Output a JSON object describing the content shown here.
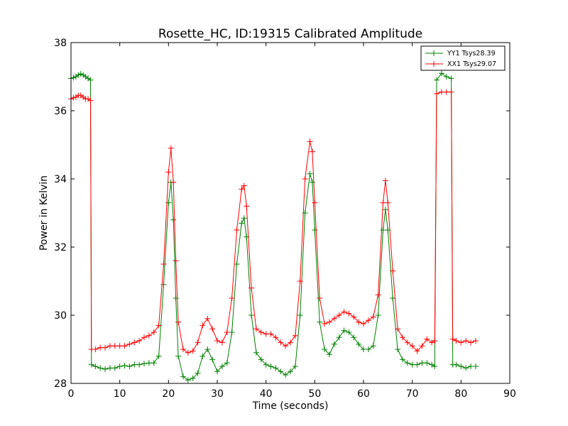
{
  "chart_data": {
    "type": "line",
    "title": "Rosette_HC, ID:19315 Calibrated Amplitude",
    "xlabel": "Time (seconds)",
    "ylabel": "Power in Kelvin",
    "xlim": [
      0,
      90
    ],
    "ylim": [
      28,
      38
    ],
    "xticks": [
      0,
      10,
      20,
      30,
      40,
      50,
      60,
      70,
      80,
      90
    ],
    "yticks": [
      28,
      30,
      32,
      34,
      36,
      38
    ],
    "grid": false,
    "legend_position": "top-right",
    "marker": "plus",
    "series": [
      {
        "name": "YY1 Tsys28.39",
        "color": "#008000",
        "points": [
          [
            0,
            36.95
          ],
          [
            0.5,
            36.97
          ],
          [
            1,
            37.0
          ],
          [
            1.5,
            37.05
          ],
          [
            2,
            37.08
          ],
          [
            2.5,
            37.05
          ],
          [
            3,
            37.0
          ],
          [
            3.5,
            36.95
          ],
          [
            4,
            36.9
          ],
          [
            4.2,
            28.55
          ],
          [
            5,
            28.5
          ],
          [
            6,
            28.45
          ],
          [
            7,
            28.42
          ],
          [
            8,
            28.45
          ],
          [
            9,
            28.45
          ],
          [
            10,
            28.5
          ],
          [
            11,
            28.52
          ],
          [
            12,
            28.5
          ],
          [
            13,
            28.55
          ],
          [
            14,
            28.55
          ],
          [
            15,
            28.58
          ],
          [
            16,
            28.6
          ],
          [
            17,
            28.6
          ],
          [
            18,
            28.8
          ],
          [
            19,
            30.9
          ],
          [
            20,
            33.3
          ],
          [
            20.5,
            33.9
          ],
          [
            21,
            32.8
          ],
          [
            21.5,
            30.5
          ],
          [
            22,
            28.8
          ],
          [
            23,
            28.2
          ],
          [
            24,
            28.1
          ],
          [
            25,
            28.15
          ],
          [
            26,
            28.3
          ],
          [
            27,
            28.8
          ],
          [
            28,
            29.0
          ],
          [
            29,
            28.7
          ],
          [
            30,
            28.35
          ],
          [
            31,
            28.5
          ],
          [
            32,
            28.6
          ],
          [
            33,
            29.5
          ],
          [
            34,
            31.5
          ],
          [
            35,
            32.7
          ],
          [
            35.5,
            32.85
          ],
          [
            36,
            32.3
          ],
          [
            37,
            30.0
          ],
          [
            38,
            28.9
          ],
          [
            39,
            28.7
          ],
          [
            40,
            28.55
          ],
          [
            41,
            28.5
          ],
          [
            42,
            28.45
          ],
          [
            43,
            28.35
          ],
          [
            44,
            28.25
          ],
          [
            45,
            28.35
          ],
          [
            46,
            28.5
          ],
          [
            47,
            30.0
          ],
          [
            48,
            33.0
          ],
          [
            49,
            34.15
          ],
          [
            49.5,
            33.9
          ],
          [
            50,
            32.5
          ],
          [
            51,
            29.8
          ],
          [
            52,
            29.0
          ],
          [
            53,
            28.85
          ],
          [
            54,
            29.15
          ],
          [
            55,
            29.35
          ],
          [
            56,
            29.55
          ],
          [
            57,
            29.5
          ],
          [
            58,
            29.35
          ],
          [
            59,
            29.15
          ],
          [
            60,
            29.0
          ],
          [
            61,
            29.0
          ],
          [
            62,
            29.1
          ],
          [
            63,
            30.0
          ],
          [
            64,
            32.5
          ],
          [
            64.5,
            33.1
          ],
          [
            65,
            32.5
          ],
          [
            66,
            30.5
          ],
          [
            67,
            29.0
          ],
          [
            68,
            28.7
          ],
          [
            69,
            28.6
          ],
          [
            70,
            28.55
          ],
          [
            71,
            28.55
          ],
          [
            72,
            28.6
          ],
          [
            73,
            28.6
          ],
          [
            74,
            28.55
          ],
          [
            74.6,
            28.5
          ],
          [
            75,
            36.9
          ],
          [
            76,
            37.1
          ],
          [
            77,
            37.0
          ],
          [
            78,
            36.95
          ],
          [
            78.3,
            28.55
          ],
          [
            79,
            28.55
          ],
          [
            80,
            28.5
          ],
          [
            81,
            28.45
          ],
          [
            82,
            28.5
          ],
          [
            83,
            28.5
          ]
        ]
      },
      {
        "name": "XX1 Tsys29.07",
        "color": "#ff0000",
        "points": [
          [
            0,
            36.35
          ],
          [
            0.5,
            36.38
          ],
          [
            1,
            36.4
          ],
          [
            1.5,
            36.45
          ],
          [
            2,
            36.45
          ],
          [
            2.5,
            36.4
          ],
          [
            3,
            36.35
          ],
          [
            3.5,
            36.35
          ],
          [
            4,
            36.3
          ],
          [
            4.2,
            29.0
          ],
          [
            5,
            29.0
          ],
          [
            6,
            29.05
          ],
          [
            7,
            29.05
          ],
          [
            8,
            29.1
          ],
          [
            9,
            29.1
          ],
          [
            10,
            29.1
          ],
          [
            11,
            29.1
          ],
          [
            12,
            29.15
          ],
          [
            13,
            29.2
          ],
          [
            14,
            29.25
          ],
          [
            15,
            29.35
          ],
          [
            16,
            29.4
          ],
          [
            17,
            29.5
          ],
          [
            18,
            29.7
          ],
          [
            19,
            31.5
          ],
          [
            20,
            34.2
          ],
          [
            20.5,
            34.9
          ],
          [
            21,
            33.9
          ],
          [
            21.5,
            31.6
          ],
          [
            22,
            29.8
          ],
          [
            23,
            29.0
          ],
          [
            24,
            28.9
          ],
          [
            25,
            28.95
          ],
          [
            26,
            29.2
          ],
          [
            27,
            29.7
          ],
          [
            28,
            29.9
          ],
          [
            29,
            29.6
          ],
          [
            30,
            29.25
          ],
          [
            31,
            29.2
          ],
          [
            32,
            29.5
          ],
          [
            33,
            30.5
          ],
          [
            34,
            32.5
          ],
          [
            35,
            33.7
          ],
          [
            35.5,
            33.8
          ],
          [
            36,
            33.2
          ],
          [
            37,
            30.8
          ],
          [
            38,
            29.6
          ],
          [
            39,
            29.5
          ],
          [
            40,
            29.45
          ],
          [
            41,
            29.45
          ],
          [
            42,
            29.35
          ],
          [
            43,
            29.2
          ],
          [
            44,
            29.1
          ],
          [
            45,
            29.2
          ],
          [
            46,
            29.4
          ],
          [
            47,
            31.0
          ],
          [
            48,
            34.0
          ],
          [
            49,
            35.1
          ],
          [
            49.5,
            34.8
          ],
          [
            50,
            33.3
          ],
          [
            51,
            30.5
          ],
          [
            52,
            29.75
          ],
          [
            53,
            29.8
          ],
          [
            54,
            29.9
          ],
          [
            55,
            30.0
          ],
          [
            56,
            30.1
          ],
          [
            57,
            30.05
          ],
          [
            58,
            29.95
          ],
          [
            59,
            29.8
          ],
          [
            60,
            29.75
          ],
          [
            61,
            29.85
          ],
          [
            62,
            29.95
          ],
          [
            63,
            30.6
          ],
          [
            64,
            33.3
          ],
          [
            64.5,
            33.95
          ],
          [
            65,
            33.3
          ],
          [
            66,
            31.3
          ],
          [
            67,
            29.6
          ],
          [
            68,
            29.35
          ],
          [
            69,
            29.2
          ],
          [
            70,
            29.1
          ],
          [
            71,
            28.95
          ],
          [
            72,
            29.1
          ],
          [
            73,
            29.3
          ],
          [
            74,
            29.2
          ],
          [
            74.6,
            29.25
          ],
          [
            75,
            36.5
          ],
          [
            76,
            36.55
          ],
          [
            77,
            36.55
          ],
          [
            78,
            36.55
          ],
          [
            78.3,
            29.3
          ],
          [
            79,
            29.25
          ],
          [
            80,
            29.2
          ],
          [
            81,
            29.25
          ],
          [
            82,
            29.2
          ],
          [
            83,
            29.25
          ]
        ]
      }
    ]
  }
}
